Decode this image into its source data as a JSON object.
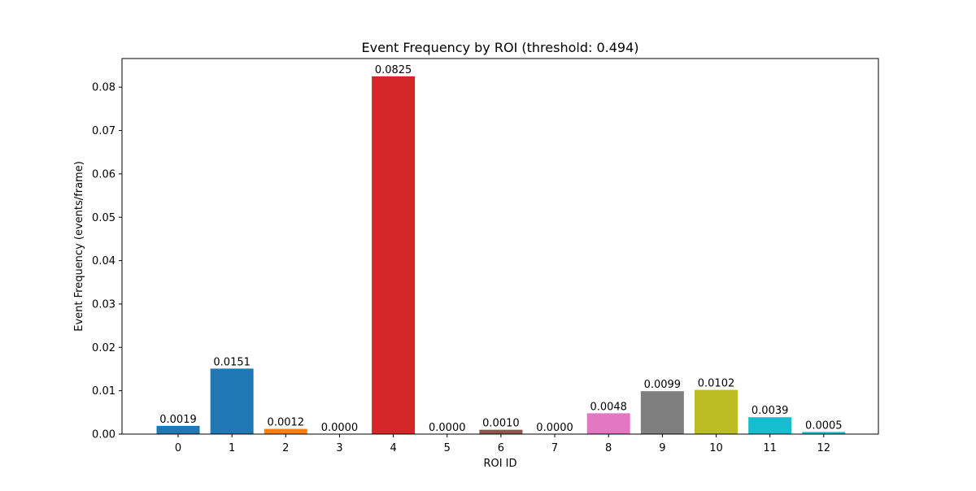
{
  "chart_data": {
    "type": "bar",
    "title": "Event Frequency by ROI (threshold: 0.494)",
    "xlabel": "ROI ID",
    "ylabel": "Event Frequency (events/frame)",
    "categories": [
      "0",
      "1",
      "2",
      "3",
      "4",
      "5",
      "6",
      "7",
      "8",
      "9",
      "10",
      "11",
      "12"
    ],
    "values": [
      0.0019,
      0.0151,
      0.0012,
      0.0,
      0.0825,
      0.0,
      0.001,
      0.0,
      0.0048,
      0.0099,
      0.0102,
      0.0039,
      0.0005
    ],
    "value_labels": [
      "0.0019",
      "0.0151",
      "0.0012",
      "0.0000",
      "0.0825",
      "0.0000",
      "0.0010",
      "0.0000",
      "0.0048",
      "0.0099",
      "0.0102",
      "0.0039",
      "0.0005"
    ],
    "colors": [
      "#1f77b4",
      "#1f77b4",
      "#ff7f0e",
      "#2ca02c",
      "#d62728",
      "#9467bd",
      "#8c564b",
      "#e377c2",
      "#e377c2",
      "#7f7f7f",
      "#bcbd22",
      "#17becf",
      "#17becf"
    ],
    "ylim": [
      0,
      0.0866
    ],
    "yticks": [
      0.0,
      0.01,
      0.02,
      0.03,
      0.04,
      0.05,
      0.06,
      0.07,
      0.08
    ],
    "ytick_labels": [
      "0.00",
      "0.01",
      "0.02",
      "0.03",
      "0.04",
      "0.05",
      "0.06",
      "0.07",
      "0.08"
    ],
    "grid": false,
    "legend": "none"
  }
}
